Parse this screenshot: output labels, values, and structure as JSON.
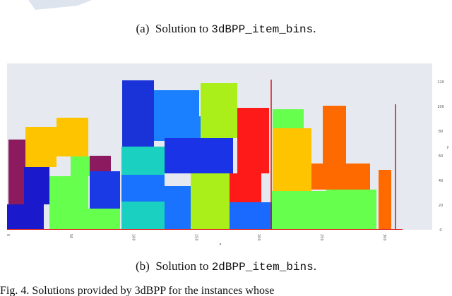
{
  "captions": [
    {
      "label": "(a)",
      "text": "Solution to",
      "code": "3dBPP_item_bins",
      "end": "."
    },
    {
      "label": "(b)",
      "text": "Solution to",
      "code": "2dBPP_item_bins",
      "end": "."
    }
  ],
  "plot": {
    "yticks": [
      "0",
      "20",
      "40",
      "60",
      "80",
      "100",
      "120"
    ],
    "xticks": [
      "0",
      "50",
      "100",
      "150",
      "200",
      "250",
      "300"
    ],
    "ylabel": "y",
    "xlabel": "x"
  },
  "footer": "Fig. 4.    Solutions provided by 3dBPP for the instances whose"
}
